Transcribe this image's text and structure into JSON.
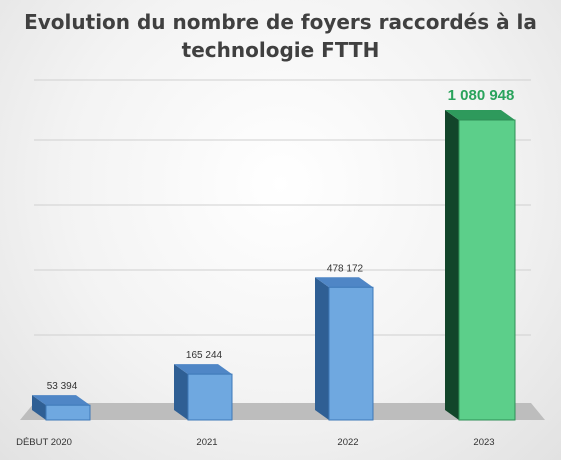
{
  "title_line1": "Evolution du nombre de foyers raccordés à la",
  "title_line2": "technologie FTTH",
  "colors": {
    "blue_front": "#6fa8e0",
    "blue_side": "#2f5f94",
    "blue_top": "#4f86c6",
    "green_front": "#5ccf8a",
    "green_side": "#12452a",
    "green_top": "#2e9a5c",
    "highlight_label": "#2aa35c",
    "axis_label": "#333333"
  },
  "chart_data": {
    "type": "bar",
    "categories": [
      "DÉBUT 2020",
      "2021",
      "2022",
      "2023"
    ],
    "values": [
      53394,
      165244,
      478172,
      1080948
    ],
    "data_labels": [
      "53 394",
      "165 244",
      "478 172",
      "1 080 948"
    ],
    "highlight_index": 3,
    "ylim": [
      0,
      1200000
    ],
    "grid": true,
    "title": "Evolution du nombre de foyers raccordés à la technologie FTTH"
  }
}
